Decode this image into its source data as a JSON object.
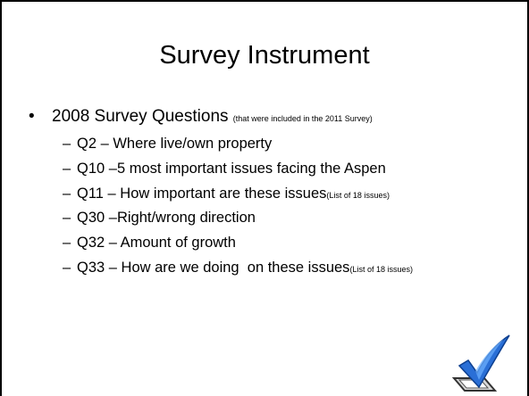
{
  "title": "Survey Instrument",
  "bullet": {
    "text": "2008 Survey Questions",
    "note": "(that were included in the 2011 Survey)"
  },
  "items": [
    {
      "text": "Q2 – Where live/own property"
    },
    {
      "text": "Q10 –5 most important issues facing the Aspen"
    },
    {
      "text": "Q11 – How important are these issues",
      "note": "(List of 18 issues)"
    },
    {
      "text": "Q30 –Right/wrong direction"
    },
    {
      "text": "Q32 – Amount of growth"
    },
    {
      "text": "Q33 – How are we doing  on these issues",
      "note": "(List of 18 issues)"
    }
  ]
}
